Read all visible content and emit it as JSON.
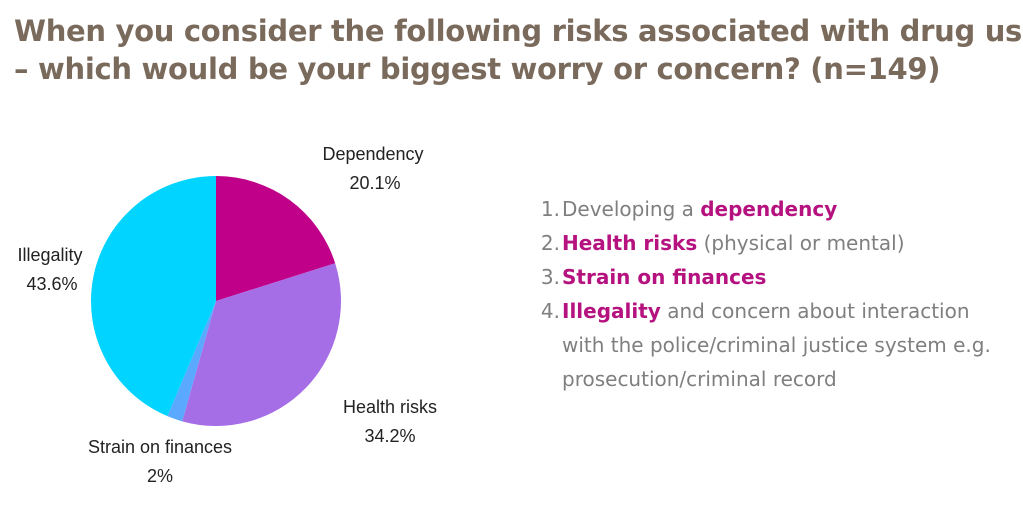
{
  "title": {
    "line1": "When you consider the following risks associated with drug use",
    "line2": "– which would be your biggest worry or concern? (n=149)"
  },
  "chart_data": {
    "type": "pie",
    "slices": [
      {
        "label": "Dependency",
        "value": 20.1,
        "value_label": "20.1%",
        "color": "#c1008a"
      },
      {
        "label": "Health risks",
        "value": 34.2,
        "value_label": "34.2%",
        "color": "#a56de6"
      },
      {
        "label": "Strain on finances",
        "value": 2,
        "value_label": "2%",
        "color": "#5aa9ff"
      },
      {
        "label": "Illegality",
        "value": 43.6,
        "value_label": "43.6%",
        "color": "#00d4ff"
      }
    ],
    "start_angle": "12 o'clock",
    "direction": "clockwise",
    "legend": "none"
  },
  "risk_list": [
    {
      "num": "1.",
      "pre": "Developing a ",
      "highlight": "dependency",
      "post": ""
    },
    {
      "num": "2.",
      "pre": "",
      "highlight": "Health risks",
      "post": " (physical or mental)"
    },
    {
      "num": "3.",
      "pre": "",
      "highlight": "Strain on finances",
      "post": ""
    },
    {
      "num": "4.",
      "pre": "",
      "highlight": "Illegality",
      "post": " and concern about interaction with the police/criminal justice system e.g. prosecution/criminal record"
    }
  ],
  "colors": {
    "title": "#7a6a5c",
    "list_text": "#7f7f7f",
    "highlight": "#b5127f"
  }
}
